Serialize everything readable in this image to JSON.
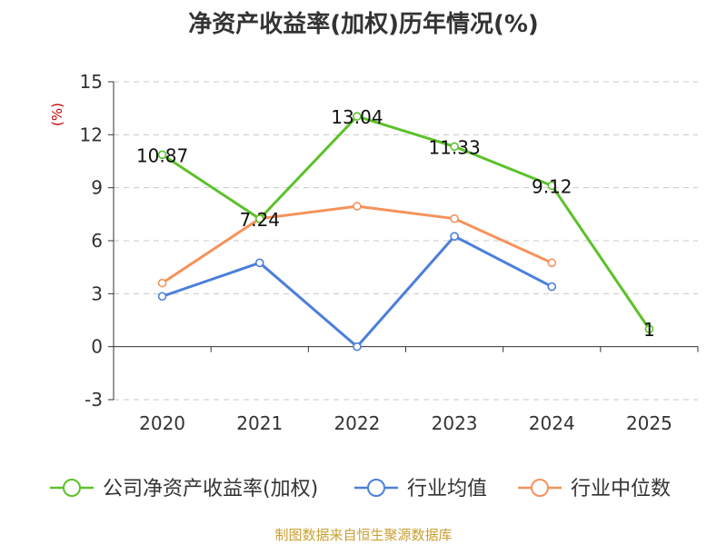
{
  "chart_data": {
    "type": "line",
    "title": "净资产收益率(加权)历年情况(%)",
    "ylabel": "(%)",
    "categories": [
      "2020",
      "2021",
      "2022",
      "2023",
      "2024",
      "2025"
    ],
    "yticks": [
      -3,
      0,
      3,
      6,
      9,
      12,
      15
    ],
    "ylim": [
      -3,
      15
    ],
    "grid": true,
    "legend_position": "bottom",
    "series": [
      {
        "name": "公司净资产收益率(加权)",
        "color": "#5cc12a",
        "values": [
          10.87,
          7.24,
          13.04,
          11.33,
          9.12,
          1
        ],
        "labels": [
          "10.87",
          "7.24",
          "13.04",
          "11.33",
          "9.12",
          "1"
        ]
      },
      {
        "name": "行业均值",
        "color": "#4c7fd9",
        "values": [
          2.85,
          4.75,
          0,
          6.25,
          3.4,
          null
        ]
      },
      {
        "name": "行业中位数",
        "color": "#f5925a",
        "values": [
          3.6,
          7.25,
          7.95,
          7.25,
          4.75,
          null
        ]
      }
    ]
  },
  "source_note": "制图数据来自恒生聚源数据库"
}
